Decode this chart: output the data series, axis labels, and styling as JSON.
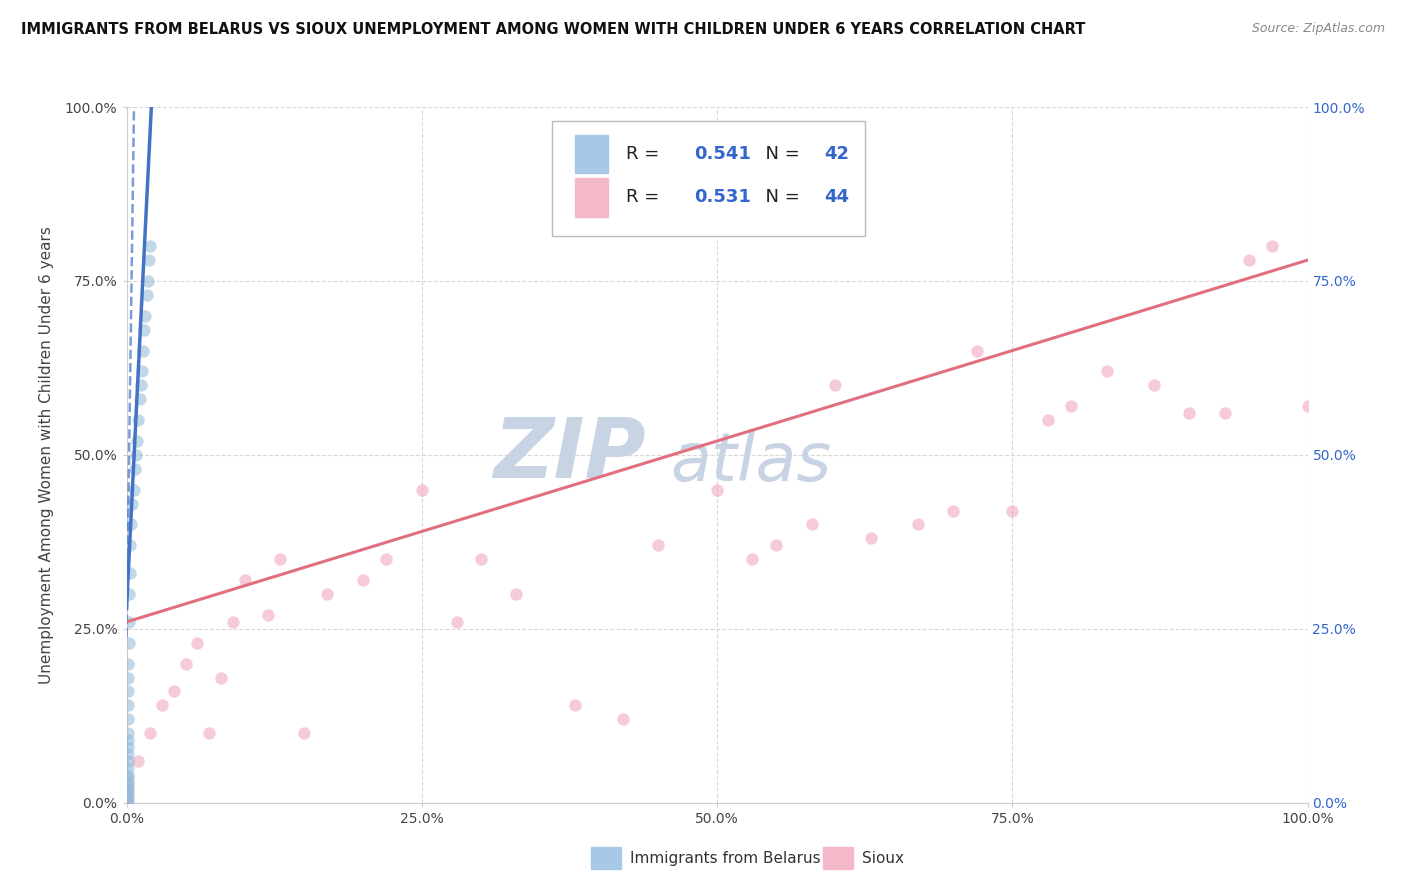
{
  "title": "IMMIGRANTS FROM BELARUS VS SIOUX UNEMPLOYMENT AMONG WOMEN WITH CHILDREN UNDER 6 YEARS CORRELATION CHART",
  "source": "Source: ZipAtlas.com",
  "ylabel": "Unemployment Among Women with Children Under 6 years",
  "watermark_line1": "ZIP",
  "watermark_line2": "atlas",
  "xlim": [
    0,
    1
  ],
  "ylim": [
    0,
    1
  ],
  "xticks": [
    0,
    0.25,
    0.5,
    0.75,
    1.0
  ],
  "yticks": [
    0,
    0.25,
    0.5,
    0.75,
    1.0
  ],
  "xticklabels": [
    "0.0%",
    "25.0%",
    "50.0%",
    "75.0%",
    "100.0%"
  ],
  "yticklabels_left": [
    "0.0%",
    "25.0%",
    "50.0%",
    "75.0%",
    "100.0%"
  ],
  "yticklabels_right": [
    "0.0%",
    "25.0%",
    "50.0%",
    "75.0%",
    "100.0%"
  ],
  "legend1_R": "0.541",
  "legend1_N": "42",
  "legend2_R": "0.531",
  "legend2_N": "44",
  "legend1_label": "Immigrants from Belarus",
  "legend2_label": "Sioux",
  "color_belarus_patch": "#a8c8e8",
  "color_sioux_patch": "#f4b8c8",
  "color_belarus_dot": "#90b8d8",
  "color_sioux_dot": "#f0a0b8",
  "color_belarus_line": "#4472c4",
  "color_sioux_line": "#e07080",
  "accent_color": "#3366cc",
  "dot_size": 80,
  "dot_alpha": 0.55,
  "background_color": "#ffffff",
  "grid_color": "#d8d8d8",
  "title_fontsize": 10.5,
  "watermark_color": "#c8d4e4",
  "watermark_fontsize_zip": 60,
  "watermark_fontsize_atlas": 48,
  "belarus_dots_x": [
    0.001,
    0.001,
    0.001,
    0.001,
    0.001,
    0.001,
    0.001,
    0.001,
    0.001,
    0.001,
    0.001,
    0.001,
    0.001,
    0.001,
    0.001,
    0.001,
    0.001,
    0.001,
    0.001,
    0.001,
    0.002,
    0.002,
    0.002,
    0.003,
    0.003,
    0.004,
    0.005,
    0.006,
    0.007,
    0.008,
    0.009,
    0.01,
    0.011,
    0.012,
    0.013,
    0.014,
    0.015,
    0.016,
    0.017,
    0.018,
    0.019,
    0.02
  ],
  "belarus_dots_y": [
    0.0,
    0.005,
    0.01,
    0.015,
    0.02,
    0.025,
    0.03,
    0.035,
    0.04,
    0.05,
    0.06,
    0.07,
    0.08,
    0.09,
    0.1,
    0.12,
    0.14,
    0.16,
    0.18,
    0.2,
    0.23,
    0.26,
    0.3,
    0.33,
    0.37,
    0.4,
    0.43,
    0.45,
    0.48,
    0.5,
    0.52,
    0.55,
    0.58,
    0.6,
    0.62,
    0.65,
    0.68,
    0.7,
    0.73,
    0.75,
    0.78,
    0.8
  ],
  "sioux_dots_x": [
    0.0,
    0.0,
    0.01,
    0.02,
    0.03,
    0.04,
    0.05,
    0.06,
    0.07,
    0.08,
    0.09,
    0.1,
    0.12,
    0.13,
    0.15,
    0.17,
    0.2,
    0.22,
    0.25,
    0.28,
    0.3,
    0.33,
    0.38,
    0.42,
    0.45,
    0.5,
    0.53,
    0.55,
    0.58,
    0.6,
    0.63,
    0.67,
    0.7,
    0.72,
    0.75,
    0.78,
    0.8,
    0.83,
    0.87,
    0.9,
    0.93,
    0.95,
    0.97,
    1.0
  ],
  "sioux_dots_y": [
    0.0,
    0.02,
    0.06,
    0.1,
    0.14,
    0.16,
    0.2,
    0.23,
    0.1,
    0.18,
    0.26,
    0.32,
    0.27,
    0.35,
    0.1,
    0.3,
    0.32,
    0.35,
    0.45,
    0.26,
    0.35,
    0.3,
    0.14,
    0.12,
    0.37,
    0.45,
    0.35,
    0.37,
    0.4,
    0.6,
    0.38,
    0.4,
    0.42,
    0.65,
    0.42,
    0.55,
    0.57,
    0.62,
    0.6,
    0.56,
    0.56,
    0.78,
    0.8,
    0.57
  ],
  "belarus_line_x0": 0.0,
  "belarus_line_x1": 0.021,
  "belarus_line_y0": 0.28,
  "belarus_line_y1": 1.0,
  "sioux_line_x0": 0.0,
  "sioux_line_x1": 1.0,
  "sioux_line_y0": 0.26,
  "sioux_line_y1": 0.78
}
